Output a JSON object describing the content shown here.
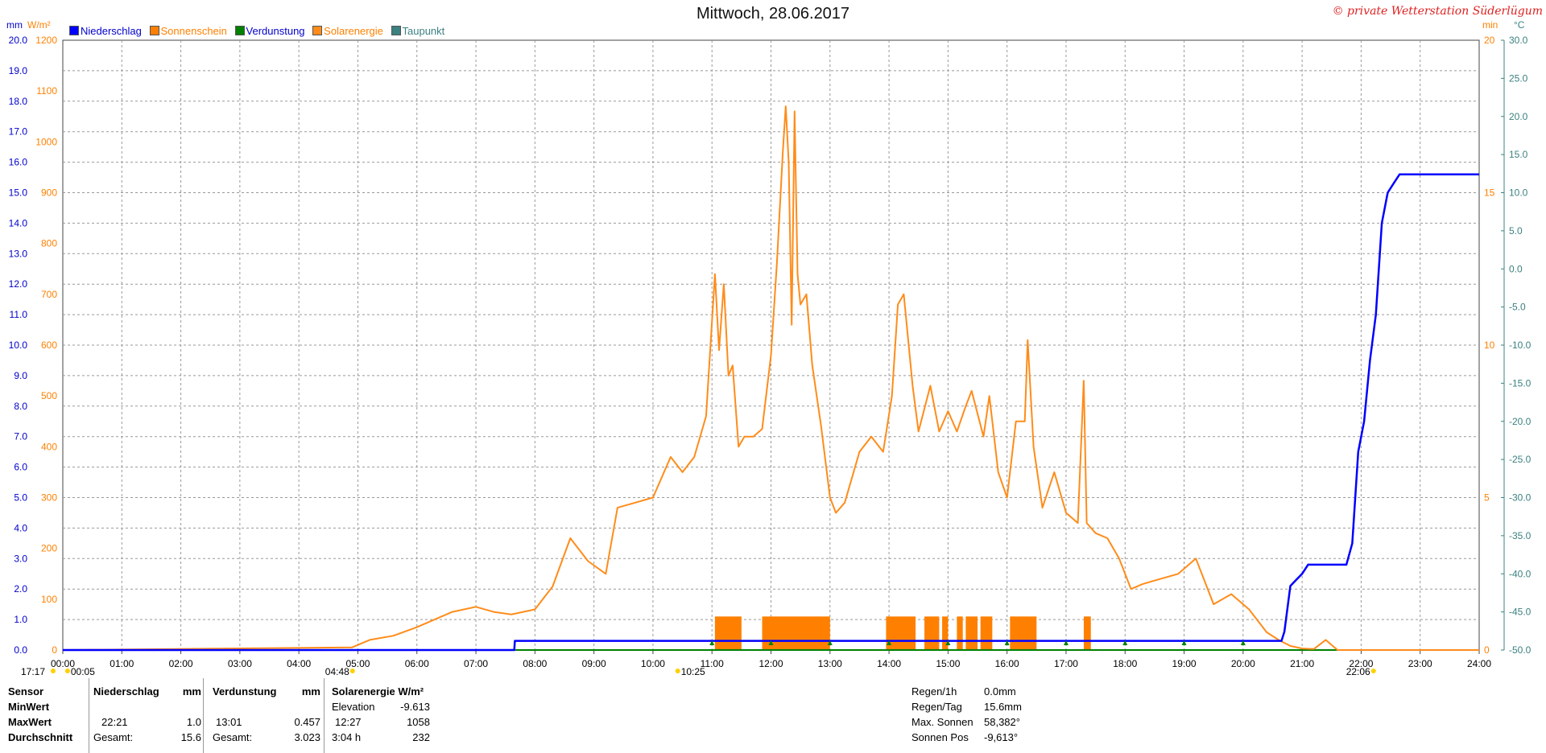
{
  "header": {
    "title": "Mittwoch, 28.06.2017",
    "copyright": "© private Wetterstation Süderlügum"
  },
  "axis_units": {
    "left_mm": "mm",
    "left_wm2": "W/m²",
    "right_min": "min",
    "right_c": "°C"
  },
  "colors": {
    "niederschlag": "#0000ff",
    "sonnenschein": "#ff8000",
    "verdunstung": "#008000",
    "solarenergie": "#ff8c1a",
    "taupunkt": "#3c8080",
    "grid": "#999999"
  },
  "chart_data": {
    "type": "line",
    "title": "Mittwoch, 28.06.2017",
    "x_ticks": [
      "00:00",
      "01:00",
      "02:00",
      "03:00",
      "04:00",
      "05:00",
      "06:00",
      "07:00",
      "08:00",
      "09:00",
      "10:00",
      "11:00",
      "12:00",
      "13:00",
      "14:00",
      "15:00",
      "16:00",
      "17:00",
      "18:00",
      "19:00",
      "20:00",
      "21:00",
      "22:00",
      "23:00",
      "24:00"
    ],
    "xlim": [
      0,
      24
    ],
    "y_axes": {
      "niederschlag_mm": {
        "ylim": [
          0,
          20
        ],
        "ticks": [
          "0.0",
          "1.0",
          "2.0",
          "3.0",
          "4.0",
          "5.0",
          "6.0",
          "7.0",
          "8.0",
          "9.0",
          "10.0",
          "11.0",
          "12.0",
          "13.0",
          "14.0",
          "15.0",
          "16.0",
          "17.0",
          "18.0",
          "19.0",
          "20.0"
        ]
      },
      "solarenergie_wm2": {
        "ylim": [
          0,
          1200
        ],
        "ticks": [
          "0",
          "100",
          "200",
          "300",
          "400",
          "500",
          "600",
          "700",
          "800",
          "900",
          "1000",
          "1100",
          "1200"
        ]
      },
      "sonnenschein_min": {
        "ylim": [
          0,
          20
        ],
        "ticks": [
          "0",
          "5",
          "10",
          "15",
          "20"
        ]
      },
      "temperatur_c": {
        "ylim": [
          -50,
          30
        ],
        "ticks": [
          "-50.0",
          "-45.0",
          "-40.0",
          "-35.0",
          "-30.0",
          "-25.0",
          "-20.0",
          "-15.0",
          "-10.0",
          "-5.0",
          "0.0",
          "5.0",
          "10.0",
          "15.0",
          "20.0",
          "25.0",
          "30.0"
        ]
      }
    },
    "legend": [
      "Niederschlag",
      "Sonnenschein",
      "Verdunstung",
      "Solarenergie",
      "Taupunkt"
    ],
    "legend_placement": "top-left",
    "grid": true,
    "series": [
      {
        "name": "Niederschlag",
        "axis": "niederschlag_mm",
        "x": [
          0,
          7.65,
          7.66,
          20.65,
          20.7,
          20.8,
          20.9,
          21.0,
          21.1,
          21.2,
          21.5,
          21.75,
          21.85,
          21.95,
          22.05,
          22.15,
          22.25,
          22.35,
          22.45,
          22.55,
          22.65,
          22.75,
          24.0
        ],
        "y": [
          0,
          0,
          0.3,
          0.3,
          0.6,
          2.1,
          2.3,
          2.5,
          2.8,
          2.8,
          2.8,
          2.8,
          3.5,
          6.5,
          7.5,
          9.5,
          11.0,
          14.0,
          15.0,
          15.3,
          15.6,
          15.6,
          15.6
        ]
      },
      {
        "name": "Solarenergie",
        "axis": "solarenergie_wm2",
        "x": [
          0,
          4.9,
          5.2,
          5.6,
          6.0,
          6.3,
          6.6,
          7.0,
          7.3,
          7.6,
          8.0,
          8.3,
          8.6,
          8.9,
          9.2,
          9.4,
          9.7,
          10.0,
          10.3,
          10.5,
          10.7,
          10.9,
          11.05,
          11.12,
          11.2,
          11.28,
          11.35,
          11.45,
          11.55,
          11.7,
          11.85,
          12.0,
          12.1,
          12.2,
          12.25,
          12.3,
          12.35,
          12.4,
          12.45,
          12.5,
          12.6,
          12.7,
          12.85,
          13.0,
          13.1,
          13.25,
          13.5,
          13.7,
          13.9,
          14.05,
          14.15,
          14.25,
          14.4,
          14.5,
          14.7,
          14.85,
          15.0,
          15.15,
          15.3,
          15.4,
          15.6,
          15.7,
          15.85,
          16.0,
          16.15,
          16.3,
          16.35,
          16.45,
          16.6,
          16.8,
          17.0,
          17.2,
          17.3,
          17.35,
          17.5,
          17.7,
          17.9,
          18.1,
          18.3,
          18.6,
          18.9,
          19.2,
          19.5,
          19.8,
          20.1,
          20.4,
          20.6,
          20.8,
          21.0,
          21.2,
          21.4,
          21.6,
          24.0
        ],
        "y": [
          0,
          5,
          20,
          28,
          45,
          60,
          75,
          85,
          75,
          70,
          80,
          125,
          220,
          175,
          150,
          280,
          290,
          300,
          380,
          350,
          380,
          460,
          740,
          590,
          720,
          540,
          560,
          400,
          420,
          420,
          435,
          580,
          760,
          980,
          1070,
          960,
          640,
          1060,
          740,
          680,
          700,
          560,
          440,
          300,
          270,
          290,
          390,
          420,
          390,
          500,
          680,
          700,
          520,
          430,
          520,
          430,
          470,
          430,
          480,
          510,
          420,
          500,
          350,
          300,
          450,
          450,
          610,
          400,
          280,
          350,
          270,
          250,
          530,
          250,
          230,
          220,
          180,
          120,
          130,
          140,
          150,
          180,
          90,
          110,
          80,
          35,
          20,
          8,
          3,
          2,
          20,
          0,
          0
        ]
      },
      {
        "name": "Verdunstung",
        "axis": "niederschlag_mm",
        "x": [
          0,
          24
        ],
        "y": [
          0,
          0
        ]
      },
      {
        "name": "Taupunkt",
        "axis": "temperatur_c",
        "x": [],
        "y": []
      }
    ],
    "sonnenschein_blocks": [
      {
        "from": 11.05,
        "to": 11.5,
        "min": 1.1
      },
      {
        "from": 11.85,
        "to": 13.0,
        "min": 1.1
      },
      {
        "from": 13.95,
        "to": 14.45,
        "min": 1.1
      },
      {
        "from": 14.6,
        "to": 14.85,
        "min": 1.1
      },
      {
        "from": 14.9,
        "to": 15.0,
        "min": 1.1
      },
      {
        "from": 15.15,
        "to": 15.25,
        "min": 1.1
      },
      {
        "from": 15.3,
        "to": 15.5,
        "min": 1.1
      },
      {
        "from": 15.55,
        "to": 15.75,
        "min": 1.1
      },
      {
        "from": 16.05,
        "to": 16.5,
        "min": 1.1
      },
      {
        "from": 17.3,
        "to": 17.42,
        "min": 1.1
      }
    ],
    "bottom_markers": [
      {
        "label": "17:17",
        "x": -0.3
      },
      {
        "label": "00:05",
        "x": 0.08
      },
      {
        "label": "04:48",
        "x": 4.8
      },
      {
        "label": "10:25",
        "x": 10.42
      },
      {
        "label": "22:06",
        "x": 22.1
      }
    ]
  },
  "stats": {
    "headers": [
      "Sensor",
      "Niederschlag",
      "mm",
      "Verdunstung",
      "mm",
      "Solarenergie W/m²"
    ],
    "rows": [
      {
        "label": "MinWert",
        "n_time": "",
        "n_val": "",
        "v_time": "",
        "v_val": "",
        "s_time": "Elevation",
        "s_val": "-9.613"
      },
      {
        "label": "MaxWert",
        "n_time": "22:21",
        "n_val": "1.0",
        "v_time": "13:01",
        "v_val": "0.457",
        "s_time": "12:27",
        "s_val": "1058"
      },
      {
        "label": "Durchschnitt",
        "n_time": "Gesamt:",
        "n_val": "15.6",
        "v_time": "Gesamt:",
        "v_val": "3.023",
        "s_time": "3:04 h",
        "s_val": "232"
      }
    ],
    "right": [
      {
        "label": "Regen/1h",
        "value": "0.0mm"
      },
      {
        "label": "Regen/Tag",
        "value": "15.6mm"
      },
      {
        "label": "Max. Sonnen",
        "value": "58,382°"
      },
      {
        "label": "Sonnen Pos",
        "value": "-9,613°"
      }
    ]
  }
}
